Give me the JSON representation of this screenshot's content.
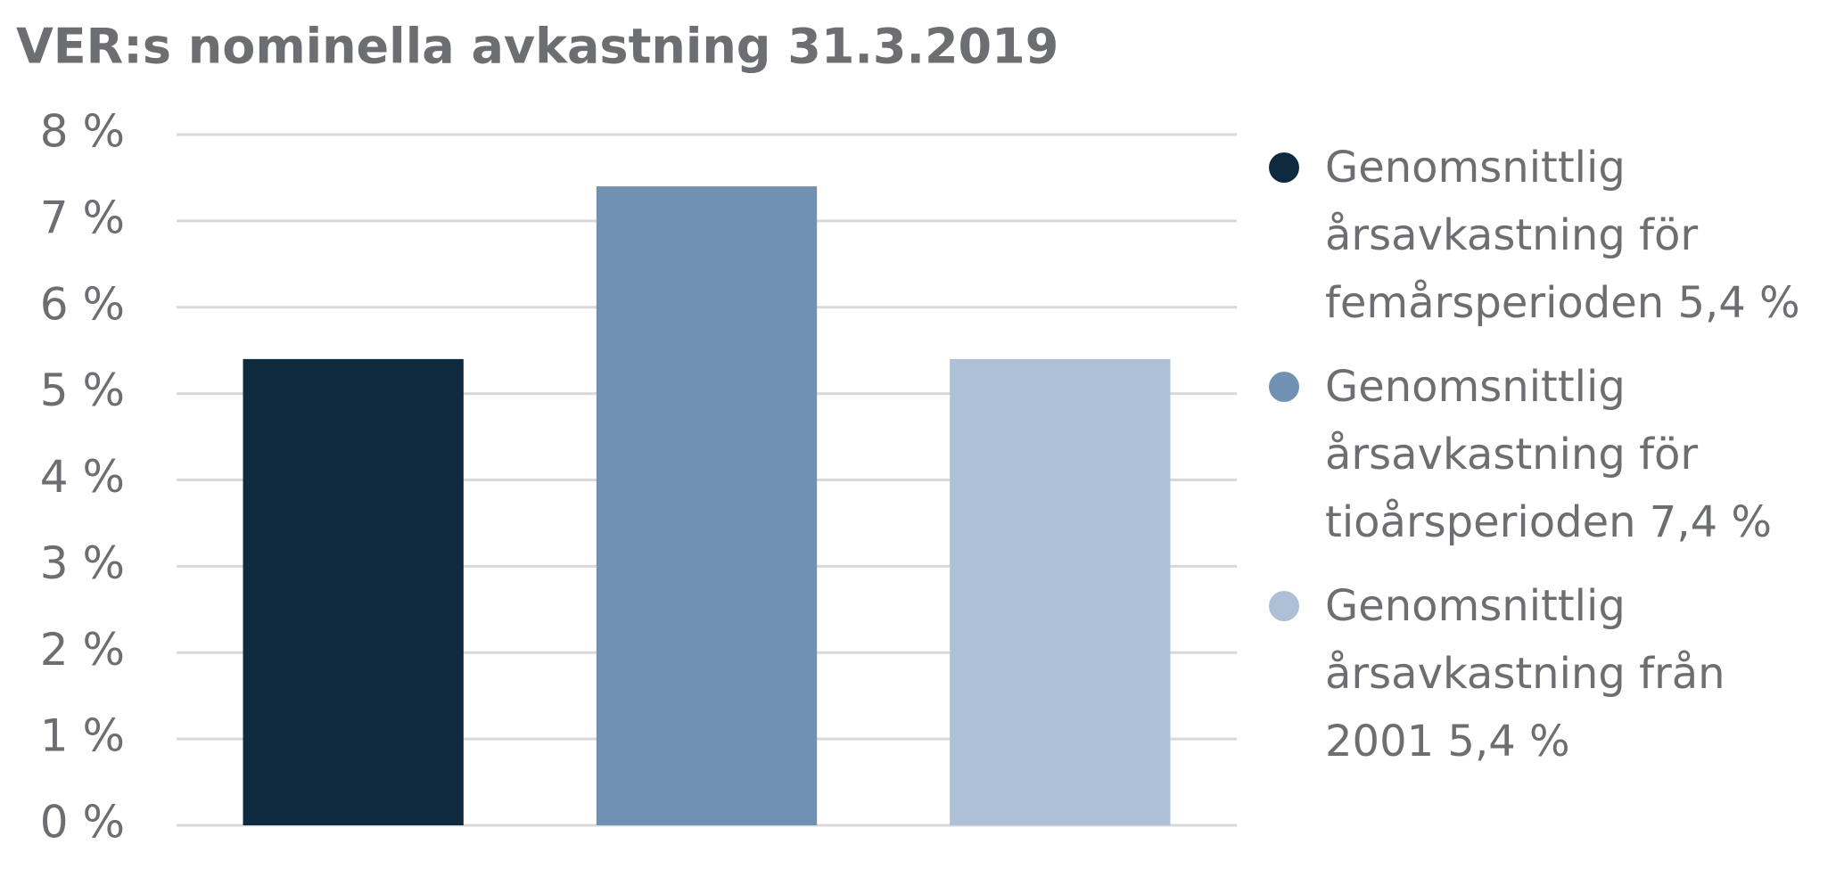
{
  "chart_data": {
    "type": "bar",
    "title": "VER:s nominella avkastning 31.3.2019",
    "categories": [
      null
    ],
    "series": [
      {
        "name": "Genomsnittlig årsavkastning för femårsperioden 5,4 %",
        "color": "#0f2a3f",
        "values": [
          5.4
        ]
      },
      {
        "name": "Genomsnittlig årsavkastning för tioårsperioden 7,4 %",
        "color": "#7191b3",
        "values": [
          7.4
        ]
      },
      {
        "name": "Genomsnittlig årsavkastning från 2001 5,4 %",
        "color": "#adc0d5",
        "values": [
          5.4
        ]
      }
    ],
    "ylim": [
      0,
      8
    ],
    "yticks": [
      {
        "value": 0,
        "label": "0 %"
      },
      {
        "value": 1,
        "label": "1 %"
      },
      {
        "value": 2,
        "label": "2 %"
      },
      {
        "value": 3,
        "label": "3 %"
      },
      {
        "value": 4,
        "label": "4 %"
      },
      {
        "value": 5,
        "label": "5 %"
      },
      {
        "value": 6,
        "label": "6 %"
      },
      {
        "value": 7,
        "label": "7 %"
      },
      {
        "value": 8,
        "label": "8 %"
      }
    ],
    "grid": true,
    "legend": "right"
  }
}
